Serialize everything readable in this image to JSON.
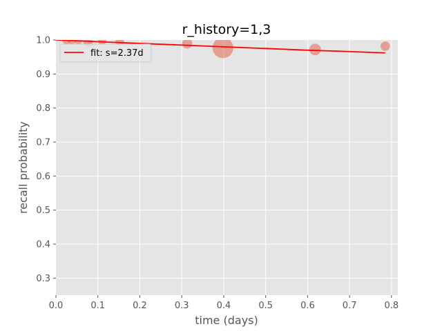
{
  "chart_data": {
    "type": "scatter",
    "title": "r_history=1,3",
    "xlabel": "time (days)",
    "ylabel": "recall probability",
    "xlim": [
      0.0,
      0.815
    ],
    "ylim": [
      0.25,
      1.0
    ],
    "xticks": [
      0.0,
      0.1,
      0.2,
      0.3,
      0.4,
      0.5,
      0.6,
      0.7,
      0.8
    ],
    "xtick_labels": [
      "0.0",
      "0.1",
      "0.2",
      "0.3",
      "0.4",
      "0.5",
      "0.6",
      "0.7",
      "0.8"
    ],
    "yticks": [
      0.3,
      0.4,
      0.5,
      0.6,
      0.7,
      0.8,
      0.9,
      1.0
    ],
    "ytick_labels": [
      "0.3",
      "0.4",
      "0.5",
      "0.6",
      "0.7",
      "0.8",
      "0.9",
      "1.0"
    ],
    "grid": true,
    "legend": {
      "placement": "top-left",
      "entries": [
        "fit: s=2.37d"
      ]
    },
    "colors": {
      "points": "#e24a33",
      "fit": "#ff0000",
      "background": "#e5e5e5",
      "grid": "#ffffff"
    },
    "scatter_points": [
      {
        "x": 0.025,
        "y": 1.0,
        "weight": 2
      },
      {
        "x": 0.038,
        "y": 1.0,
        "weight": 2
      },
      {
        "x": 0.053,
        "y": 1.0,
        "weight": 2
      },
      {
        "x": 0.076,
        "y": 0.995,
        "weight": 3
      },
      {
        "x": 0.11,
        "y": 0.998,
        "weight": 2
      },
      {
        "x": 0.152,
        "y": 0.997,
        "weight": 2
      },
      {
        "x": 0.313,
        "y": 0.99,
        "weight": 4
      },
      {
        "x": 0.398,
        "y": 0.977,
        "weight": 30
      },
      {
        "x": 0.618,
        "y": 0.972,
        "weight": 6
      },
      {
        "x": 0.785,
        "y": 0.982,
        "weight": 3
      }
    ],
    "fit_line": {
      "name": "fit: s=2.37d",
      "x": [
        0.0,
        0.1,
        0.2,
        0.3,
        0.4,
        0.5,
        0.6,
        0.7,
        0.785
      ],
      "y": [
        1.0,
        0.995,
        0.99,
        0.985,
        0.98,
        0.975,
        0.97,
        0.966,
        0.962
      ]
    }
  }
}
